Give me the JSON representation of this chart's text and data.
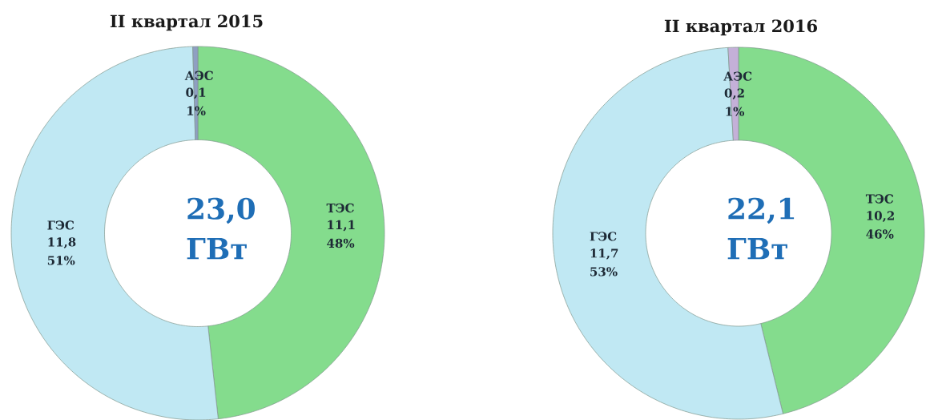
{
  "chart_data": [
    {
      "type": "donut",
      "title": "II квартал 2015",
      "categories": [
        "ТЭС",
        "ГЭС",
        "АЭС"
      ],
      "values": [
        11.1,
        11.8,
        0.1
      ],
      "colors": [
        "#84dc8d",
        "#c0e8f3",
        "#8f9fc2"
      ],
      "value_labels": [
        "11,1 48%",
        "11,8 51%",
        "0,1 1%"
      ],
      "annotations": [
        "23,0 ГВт"
      ]
    },
    {
      "type": "donut",
      "title": "II квартал 2016",
      "categories": [
        "ТЭС",
        "ГЭС",
        "АЭС"
      ],
      "values": [
        10.2,
        11.7,
        0.2
      ],
      "colors": [
        "#84dc8d",
        "#c0e8f3",
        "#c4b0d8"
      ],
      "value_labels": [
        "10,2 46%",
        "11,7 53%",
        "0,2 1%"
      ],
      "annotations": [
        "22,1 ГВт"
      ]
    }
  ]
}
